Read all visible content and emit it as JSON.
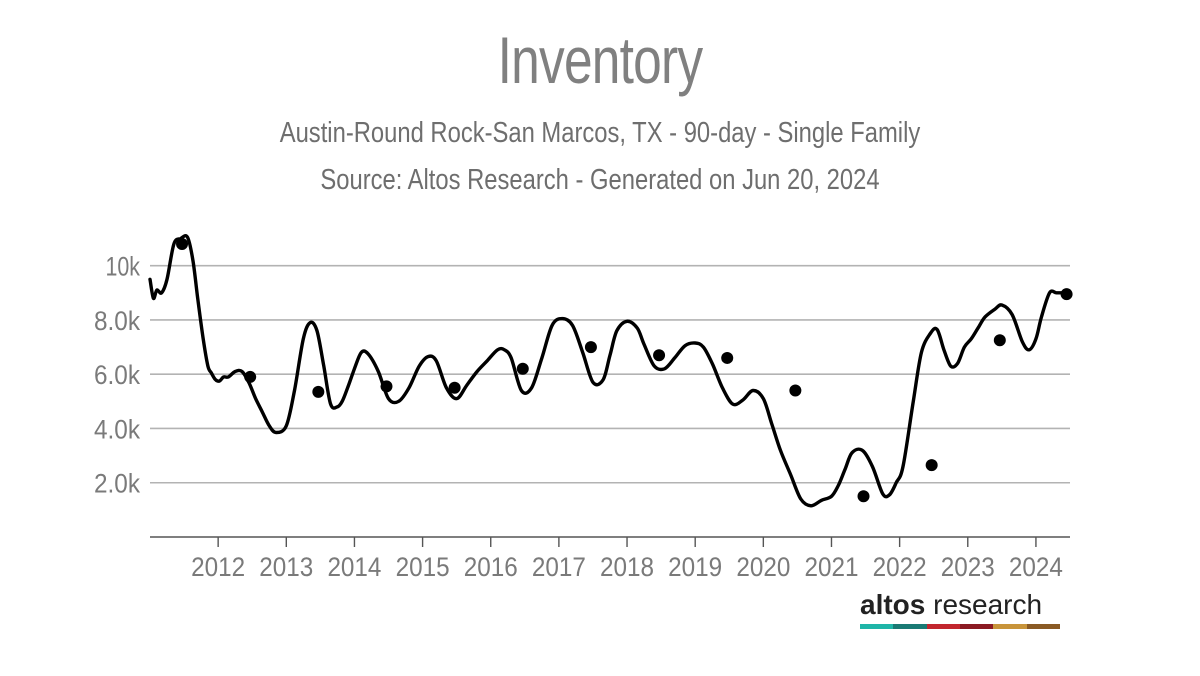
{
  "header": {
    "title": "Inventory",
    "subtitle": "Austin-Round Rock-San Marcos, TX - 90-day - Single Family",
    "source": "Source: Altos Research - Generated on Jun 20, 2024"
  },
  "brand": {
    "name_part1": "altos",
    "name_part2": "research",
    "bar_colors": [
      "#1fb5a8",
      "#1a7a74",
      "#c2262e",
      "#8b1a22",
      "#c8943a",
      "#8a5a24"
    ]
  },
  "colors": {
    "line": "#000000",
    "grid": "#b3b3b3",
    "axis_text": "#7a7a7a",
    "title": "#808080"
  },
  "chart_data": {
    "type": "line",
    "title": "Inventory",
    "xlabel": "",
    "ylabel": "",
    "x_range": [
      2011.0,
      2024.5
    ],
    "ylim": [
      0,
      11500
    ],
    "y_ticks": [
      2000,
      4000,
      6000,
      8000,
      10000
    ],
    "y_tick_labels": [
      "2.0k",
      "4.0k",
      "6.0k",
      "8.0k",
      "10k"
    ],
    "x_ticks": [
      2012,
      2013,
      2014,
      2015,
      2016,
      2017,
      2018,
      2019,
      2020,
      2021,
      2022,
      2023,
      2024
    ],
    "x_tick_labels": [
      "2012",
      "2013",
      "2014",
      "2015",
      "2016",
      "2017",
      "2018",
      "2019",
      "2020",
      "2021",
      "2022",
      "2023",
      "2024"
    ],
    "grid": "horizontal",
    "legend": "none",
    "series": [
      {
        "x": [
          2011.0,
          2011.05,
          2011.1,
          2011.17,
          2011.25,
          2011.35,
          2011.45,
          2011.55,
          2011.63,
          2011.7,
          2011.78,
          2011.85,
          2011.9,
          2011.96,
          2012.02,
          2012.08,
          2012.15,
          2012.25,
          2012.35,
          2012.45,
          2012.55,
          2012.65,
          2012.75,
          2012.85,
          2013.0,
          2013.12,
          2013.25,
          2013.35,
          2013.45,
          2013.55,
          2013.65,
          2013.75,
          2013.82,
          2013.9,
          2014.0,
          2014.1,
          2014.2,
          2014.35,
          2014.5,
          2014.65,
          2014.8,
          2014.95,
          2015.08,
          2015.2,
          2015.35,
          2015.5,
          2015.65,
          2015.8,
          2015.95,
          2016.1,
          2016.2,
          2016.3,
          2016.45,
          2016.6,
          2016.75,
          2016.9,
          2017.05,
          2017.2,
          2017.35,
          2017.5,
          2017.65,
          2017.75,
          2017.85,
          2018.0,
          2018.15,
          2018.25,
          2018.4,
          2018.55,
          2018.7,
          2018.85,
          2019.0,
          2019.12,
          2019.25,
          2019.4,
          2019.55,
          2019.7,
          2019.85,
          2020.0,
          2020.12,
          2020.25,
          2020.4,
          2020.55,
          2020.7,
          2020.85,
          2021.0,
          2021.1,
          2021.2,
          2021.3,
          2021.45,
          2021.6,
          2021.75,
          2021.85,
          2021.95,
          2022.05,
          2022.2,
          2022.32,
          2022.45,
          2022.55,
          2022.65,
          2022.75,
          2022.85,
          2022.95,
          2023.05,
          2023.15,
          2023.25,
          2023.4,
          2023.5,
          2023.65,
          2023.8,
          2023.9,
          2024.0,
          2024.08,
          2024.2,
          2024.3,
          2024.42
        ],
        "values": [
          9500,
          8800,
          9100,
          9000,
          9500,
          10800,
          11000,
          11050,
          10200,
          8800,
          7300,
          6300,
          6050,
          5800,
          5750,
          5900,
          5900,
          6100,
          6100,
          5700,
          5100,
          4600,
          4100,
          3850,
          4100,
          5400,
          7300,
          7900,
          7600,
          6300,
          4900,
          4800,
          5000,
          5500,
          6200,
          6800,
          6750,
          6100,
          5100,
          5000,
          5500,
          6300,
          6650,
          6500,
          5500,
          5100,
          5600,
          6100,
          6500,
          6900,
          6900,
          6600,
          5400,
          5500,
          6600,
          7800,
          8050,
          7800,
          6800,
          5700,
          5800,
          6700,
          7600,
          7950,
          7700,
          7100,
          6300,
          6200,
          6600,
          7050,
          7150,
          7000,
          6400,
          5500,
          4900,
          5050,
          5400,
          5100,
          4200,
          3200,
          2300,
          1400,
          1150,
          1350,
          1500,
          1900,
          2500,
          3100,
          3200,
          2600,
          1600,
          1550,
          2000,
          2600,
          5000,
          6800,
          7500,
          7650,
          6900,
          6300,
          6400,
          7000,
          7300,
          7700,
          8100,
          8400,
          8550,
          8200,
          7200,
          6900,
          7300,
          8100,
          9000,
          9000,
          9000
        ],
        "markers_x": [
          2011.47,
          2012.47,
          2013.47,
          2014.47,
          2015.47,
          2016.47,
          2017.47,
          2018.47,
          2019.47,
          2020.47,
          2021.47,
          2022.47,
          2023.47,
          2024.45
        ],
        "markers_y": [
          10800,
          5900,
          5350,
          5550,
          5500,
          6200,
          7000,
          6700,
          6600,
          5400,
          1500,
          2650,
          7250,
          8950
        ]
      }
    ]
  }
}
